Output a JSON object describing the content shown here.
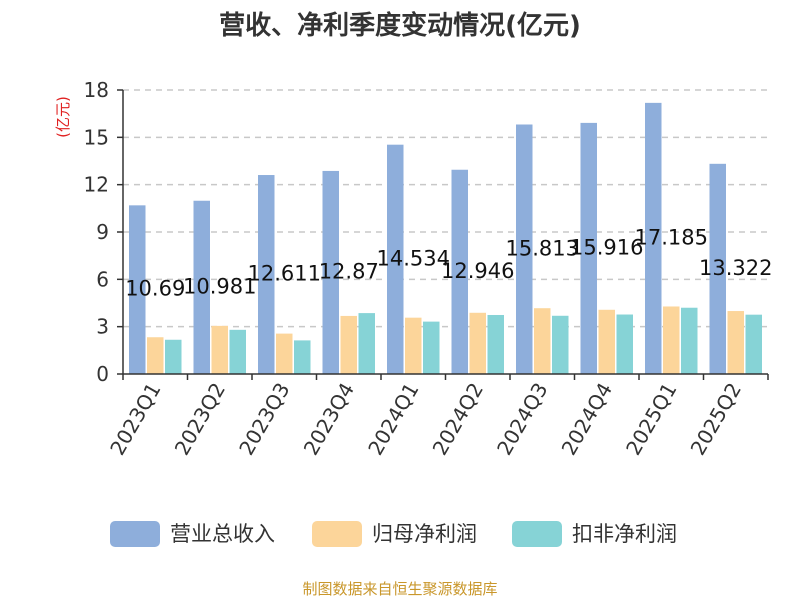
{
  "chart_data": {
    "type": "bar",
    "title": "营收、净利季度变动情况(亿元)",
    "ylabel": "(亿元)",
    "xlabel": "",
    "ylim": [
      0,
      18
    ],
    "yticks": [
      0,
      3,
      6,
      9,
      12,
      15,
      18
    ],
    "grid": true,
    "legend_position": "bottom",
    "categories": [
      "2023Q1",
      "2023Q2",
      "2023Q3",
      "2023Q4",
      "2024Q1",
      "2024Q2",
      "2024Q3",
      "2024Q4",
      "2025Q1",
      "2025Q2"
    ],
    "series": [
      {
        "name": "营业总收入",
        "color": "#8eaedb",
        "values": [
          10.69,
          10.981,
          12.611,
          12.87,
          14.534,
          12.946,
          15.813,
          15.916,
          17.185,
          13.322
        ]
      },
      {
        "name": "归母净利润",
        "color": "#fcd59a",
        "values": [
          2.33,
          3.05,
          2.56,
          3.68,
          3.57,
          3.88,
          4.17,
          4.07,
          4.28,
          3.99
        ]
      },
      {
        "name": "扣非净利润",
        "color": "#86d3d6",
        "values": [
          2.17,
          2.8,
          2.13,
          3.86,
          3.32,
          3.74,
          3.69,
          3.77,
          4.2,
          3.76
        ]
      }
    ],
    "data_labels": [
      "10.69",
      "10.981",
      "12.611",
      "12.87",
      "14.534",
      "12.946",
      "15.813",
      "15.916",
      "17.185",
      "13.322"
    ],
    "source": "制图数据来自恒生聚源数据库"
  }
}
